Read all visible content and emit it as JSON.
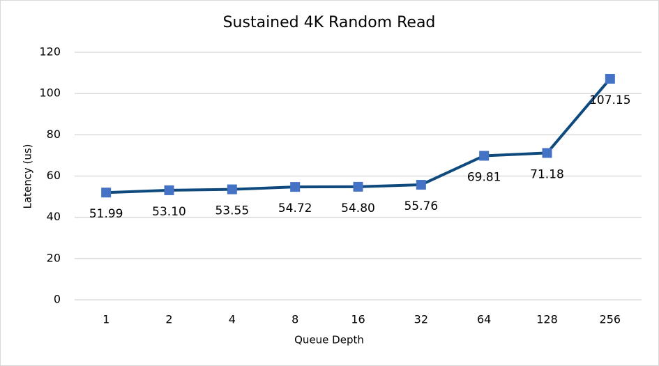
{
  "chart_data": {
    "type": "line",
    "title": "Sustained 4K Random Read",
    "x_label": "Queue Depth",
    "y_label": "Latency (us)",
    "categories": [
      "1",
      "2",
      "4",
      "8",
      "16",
      "32",
      "64",
      "128",
      "256"
    ],
    "series": [
      {
        "name": "Latency",
        "color": "#0e4a7e",
        "marker_color": "#4472c4",
        "values": [
          51.99,
          53.1,
          53.55,
          54.72,
          54.8,
          55.76,
          69.81,
          71.18,
          107.15
        ],
        "value_labels": [
          "51.99",
          "53.10",
          "53.55",
          "54.72",
          "54.80",
          "55.76",
          "69.81",
          "71.18",
          "107.15"
        ]
      }
    ],
    "ylim": [
      0,
      120
    ],
    "yticks": [
      0,
      20,
      40,
      60,
      80,
      100,
      120
    ],
    "grid": true
  }
}
